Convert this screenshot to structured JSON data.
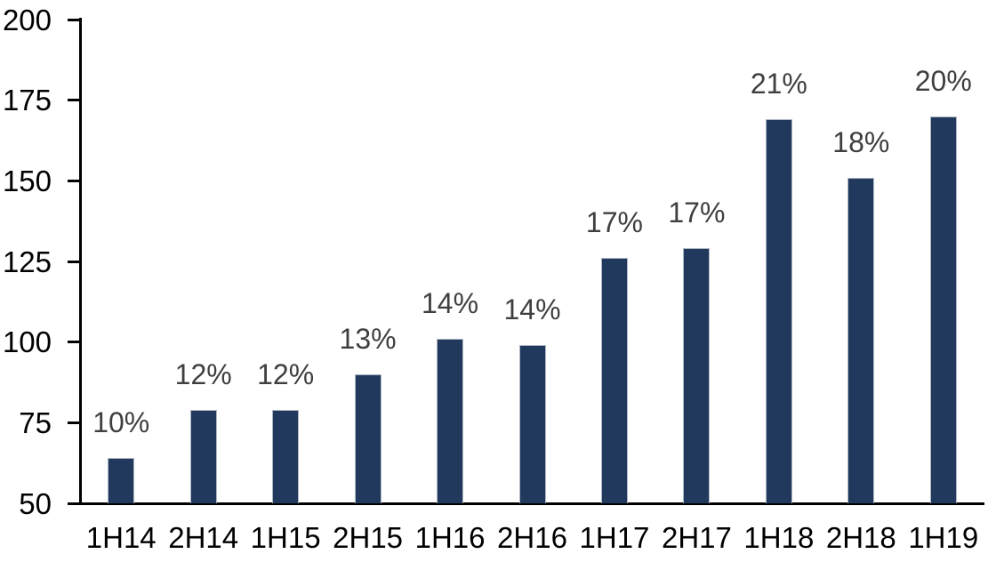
{
  "chart_data": {
    "type": "bar",
    "categories": [
      "1H14",
      "2H14",
      "1H15",
      "2H15",
      "1H16",
      "2H16",
      "1H17",
      "2H17",
      "1H18",
      "2H18",
      "1H19"
    ],
    "values": [
      64,
      79,
      79,
      90,
      101,
      99,
      126,
      129,
      169,
      151,
      170
    ],
    "data_labels": [
      "10%",
      "12%",
      "12%",
      "13%",
      "14%",
      "14%",
      "17%",
      "17%",
      "21%",
      "18%",
      "20%"
    ],
    "title": "",
    "xlabel": "",
    "ylabel": "",
    "ylim": [
      50,
      200
    ],
    "yticks": [
      50,
      75,
      100,
      125,
      150,
      175,
      200
    ],
    "grid": false,
    "legend": false,
    "colors": {
      "bar_fill": "#21395C",
      "bar_border": "#AEB7C3",
      "data_label": "#3F3F3F",
      "axis": "#000000",
      "background": "#FFFFFF"
    }
  }
}
